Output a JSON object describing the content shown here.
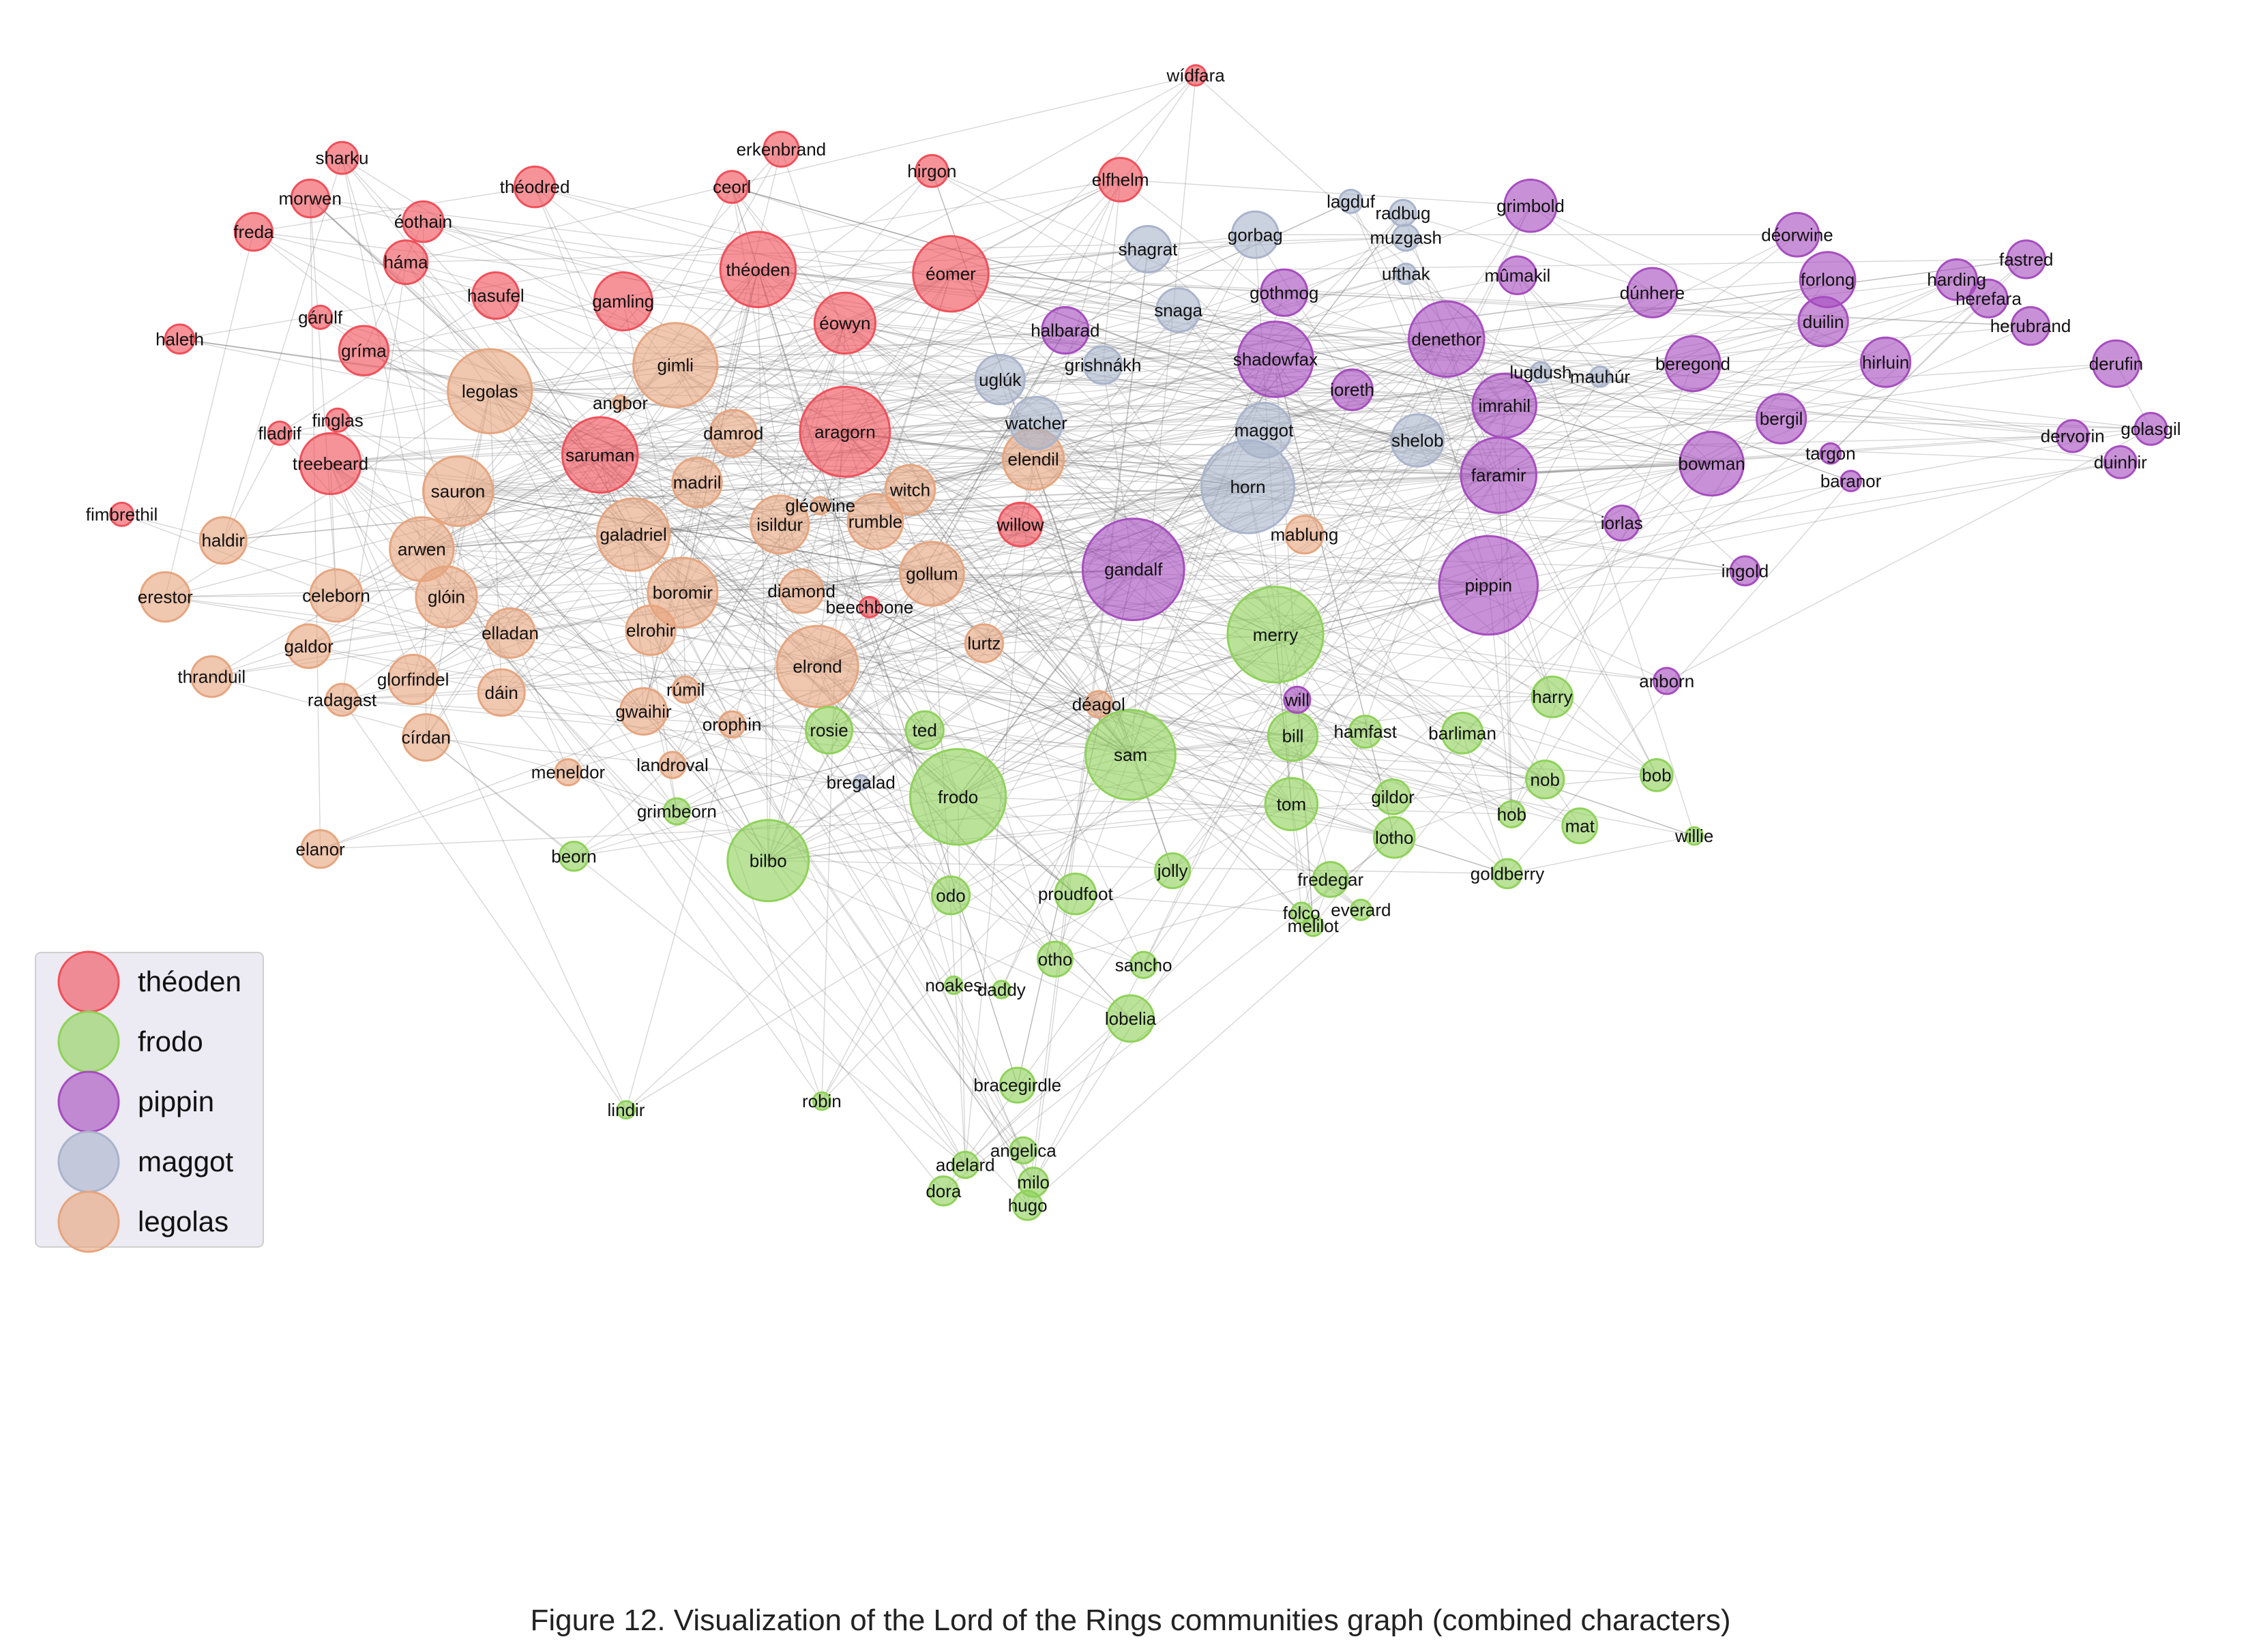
{
  "caption": "Figure 12. Visualization of the Lord of the Rings communities graph (combined characters)",
  "communities": [
    {
      "key": "theoden",
      "label": "théoden",
      "color": "#f0505a"
    },
    {
      "key": "frodo",
      "label": "frodo",
      "color": "#8fd25a"
    },
    {
      "key": "pippin",
      "label": "pippin",
      "color": "#a64dbf"
    },
    {
      "key": "maggot",
      "label": "maggot",
      "color": "#a9b4cc"
    },
    {
      "key": "legolas",
      "label": "legolas",
      "color": "#e6a57e"
    }
  ],
  "legend_position": "lower-left",
  "nodes": [
    {
      "name": "wídfara",
      "community": "theoden"
    },
    {
      "name": "erkenbrand",
      "community": "theoden"
    },
    {
      "name": "sharku",
      "community": "theoden"
    },
    {
      "name": "morwen",
      "community": "theoden"
    },
    {
      "name": "théodred",
      "community": "theoden"
    },
    {
      "name": "ceorl",
      "community": "theoden"
    },
    {
      "name": "hirgon",
      "community": "theoden"
    },
    {
      "name": "elfhelm",
      "community": "theoden"
    },
    {
      "name": "freda",
      "community": "theoden"
    },
    {
      "name": "éothain",
      "community": "theoden"
    },
    {
      "name": "háma",
      "community": "theoden"
    },
    {
      "name": "théoden",
      "community": "theoden"
    },
    {
      "name": "éomer",
      "community": "theoden"
    },
    {
      "name": "hasufel",
      "community": "theoden"
    },
    {
      "name": "gamling",
      "community": "theoden"
    },
    {
      "name": "éowyn",
      "community": "theoden"
    },
    {
      "name": "gárulf",
      "community": "theoden"
    },
    {
      "name": "haleth",
      "community": "theoden"
    },
    {
      "name": "gríma",
      "community": "theoden"
    },
    {
      "name": "finglas",
      "community": "theoden"
    },
    {
      "name": "fladrif",
      "community": "theoden"
    },
    {
      "name": "treebeard",
      "community": "theoden"
    },
    {
      "name": "saruman",
      "community": "theoden"
    },
    {
      "name": "aragorn",
      "community": "theoden"
    },
    {
      "name": "fimbrethil",
      "community": "theoden"
    },
    {
      "name": "willow",
      "community": "theoden"
    },
    {
      "name": "beechbone",
      "community": "theoden"
    },
    {
      "name": "lagduf",
      "community": "maggot"
    },
    {
      "name": "radbug",
      "community": "maggot"
    },
    {
      "name": "muzgash",
      "community": "maggot"
    },
    {
      "name": "gorbag",
      "community": "maggot"
    },
    {
      "name": "shagrat",
      "community": "maggot"
    },
    {
      "name": "ufthak",
      "community": "maggot"
    },
    {
      "name": "snaga",
      "community": "maggot"
    },
    {
      "name": "grishnákh",
      "community": "maggot"
    },
    {
      "name": "uglúk",
      "community": "maggot"
    },
    {
      "name": "watcher",
      "community": "maggot"
    },
    {
      "name": "lugdush",
      "community": "maggot"
    },
    {
      "name": "mauhúr",
      "community": "maggot"
    },
    {
      "name": "maggot",
      "community": "maggot"
    },
    {
      "name": "shelob",
      "community": "maggot"
    },
    {
      "name": "horn",
      "community": "maggot"
    },
    {
      "name": "bregalad",
      "community": "maggot"
    },
    {
      "name": "grimbold",
      "community": "pippin"
    },
    {
      "name": "déorwine",
      "community": "pippin"
    },
    {
      "name": "fastred",
      "community": "pippin"
    },
    {
      "name": "mûmakil",
      "community": "pippin"
    },
    {
      "name": "dúnhere",
      "community": "pippin"
    },
    {
      "name": "forlong",
      "community": "pippin"
    },
    {
      "name": "harding",
      "community": "pippin"
    },
    {
      "name": "herefara",
      "community": "pippin"
    },
    {
      "name": "herubrand",
      "community": "pippin"
    },
    {
      "name": "gothmog",
      "community": "pippin"
    },
    {
      "name": "duilin",
      "community": "pippin"
    },
    {
      "name": "halbarad",
      "community": "pippin"
    },
    {
      "name": "denethor",
      "community": "pippin"
    },
    {
      "name": "shadowfax",
      "community": "pippin"
    },
    {
      "name": "beregond",
      "community": "pippin"
    },
    {
      "name": "hirluin",
      "community": "pippin"
    },
    {
      "name": "derufin",
      "community": "pippin"
    },
    {
      "name": "ioreth",
      "community": "pippin"
    },
    {
      "name": "imrahil",
      "community": "pippin"
    },
    {
      "name": "bergil",
      "community": "pippin"
    },
    {
      "name": "golasgil",
      "community": "pippin"
    },
    {
      "name": "dervorin",
      "community": "pippin"
    },
    {
      "name": "targon",
      "community": "pippin"
    },
    {
      "name": "duinhir",
      "community": "pippin"
    },
    {
      "name": "bowman",
      "community": "pippin"
    },
    {
      "name": "faramir",
      "community": "pippin"
    },
    {
      "name": "baranor",
      "community": "pippin"
    },
    {
      "name": "iorlas",
      "community": "pippin"
    },
    {
      "name": "gandalf",
      "community": "pippin"
    },
    {
      "name": "pippin",
      "community": "pippin"
    },
    {
      "name": "ingold",
      "community": "pippin"
    },
    {
      "name": "will",
      "community": "pippin"
    },
    {
      "name": "anborn",
      "community": "pippin"
    },
    {
      "name": "gimli",
      "community": "legolas"
    },
    {
      "name": "legolas",
      "community": "legolas"
    },
    {
      "name": "angbor",
      "community": "legolas"
    },
    {
      "name": "damrod",
      "community": "legolas"
    },
    {
      "name": "elendil",
      "community": "legolas"
    },
    {
      "name": "madril",
      "community": "legolas"
    },
    {
      "name": "sauron",
      "community": "legolas"
    },
    {
      "name": "witch",
      "community": "legolas"
    },
    {
      "name": "gléowine",
      "community": "legolas"
    },
    {
      "name": "isildur",
      "community": "legolas"
    },
    {
      "name": "rumble",
      "community": "legolas"
    },
    {
      "name": "galadriel",
      "community": "legolas"
    },
    {
      "name": "haldir",
      "community": "legolas"
    },
    {
      "name": "arwen",
      "community": "legolas"
    },
    {
      "name": "mablung",
      "community": "legolas"
    },
    {
      "name": "erestor",
      "community": "legolas"
    },
    {
      "name": "celeborn",
      "community": "legolas"
    },
    {
      "name": "glóin",
      "community": "legolas"
    },
    {
      "name": "boromir",
      "community": "legolas"
    },
    {
      "name": "diamond",
      "community": "legolas"
    },
    {
      "name": "gollum",
      "community": "legolas"
    },
    {
      "name": "galdor",
      "community": "legolas"
    },
    {
      "name": "elladan",
      "community": "legolas"
    },
    {
      "name": "elrohir",
      "community": "legolas"
    },
    {
      "name": "lurtz",
      "community": "legolas"
    },
    {
      "name": "thranduil",
      "community": "legolas"
    },
    {
      "name": "glorfindel",
      "community": "legolas"
    },
    {
      "name": "rúmil",
      "community": "legolas"
    },
    {
      "name": "elrond",
      "community": "legolas"
    },
    {
      "name": "radagast",
      "community": "legolas"
    },
    {
      "name": "dáin",
      "community": "legolas"
    },
    {
      "name": "déagol",
      "community": "legolas"
    },
    {
      "name": "gwaihir",
      "community": "legolas"
    },
    {
      "name": "orophin",
      "community": "legolas"
    },
    {
      "name": "círdan",
      "community": "legolas"
    },
    {
      "name": "meneldor",
      "community": "legolas"
    },
    {
      "name": "landroval",
      "community": "legolas"
    },
    {
      "name": "elanor",
      "community": "legolas"
    },
    {
      "name": "merry",
      "community": "frodo"
    },
    {
      "name": "harry",
      "community": "frodo"
    },
    {
      "name": "rosie",
      "community": "frodo"
    },
    {
      "name": "ted",
      "community": "frodo"
    },
    {
      "name": "sam",
      "community": "frodo"
    },
    {
      "name": "bill",
      "community": "frodo"
    },
    {
      "name": "hamfast",
      "community": "frodo"
    },
    {
      "name": "barliman",
      "community": "frodo"
    },
    {
      "name": "bob",
      "community": "frodo"
    },
    {
      "name": "nob",
      "community": "frodo"
    },
    {
      "name": "frodo",
      "community": "frodo"
    },
    {
      "name": "tom",
      "community": "frodo"
    },
    {
      "name": "gildor",
      "community": "frodo"
    },
    {
      "name": "hob",
      "community": "frodo"
    },
    {
      "name": "mat",
      "community": "frodo"
    },
    {
      "name": "willie",
      "community": "frodo"
    },
    {
      "name": "grimbeorn",
      "community": "frodo"
    },
    {
      "name": "lotho",
      "community": "frodo"
    },
    {
      "name": "beorn",
      "community": "frodo"
    },
    {
      "name": "bilbo",
      "community": "frodo"
    },
    {
      "name": "jolly",
      "community": "frodo"
    },
    {
      "name": "goldberry",
      "community": "frodo"
    },
    {
      "name": "fredegar",
      "community": "frodo"
    },
    {
      "name": "odo",
      "community": "frodo"
    },
    {
      "name": "proudfoot",
      "community": "frodo"
    },
    {
      "name": "folco",
      "community": "frodo"
    },
    {
      "name": "everard",
      "community": "frodo"
    },
    {
      "name": "melilot",
      "community": "frodo"
    },
    {
      "name": "otho",
      "community": "frodo"
    },
    {
      "name": "sancho",
      "community": "frodo"
    },
    {
      "name": "noakes",
      "community": "frodo"
    },
    {
      "name": "daddy",
      "community": "frodo"
    },
    {
      "name": "lobelia",
      "community": "frodo"
    },
    {
      "name": "bracegirdle",
      "community": "frodo"
    },
    {
      "name": "lindir",
      "community": "frodo"
    },
    {
      "name": "robin",
      "community": "frodo"
    },
    {
      "name": "angelica",
      "community": "frodo"
    },
    {
      "name": "adelard",
      "community": "frodo"
    },
    {
      "name": "milo",
      "community": "frodo"
    },
    {
      "name": "dora",
      "community": "frodo"
    },
    {
      "name": "hugo",
      "community": "frodo"
    }
  ]
}
